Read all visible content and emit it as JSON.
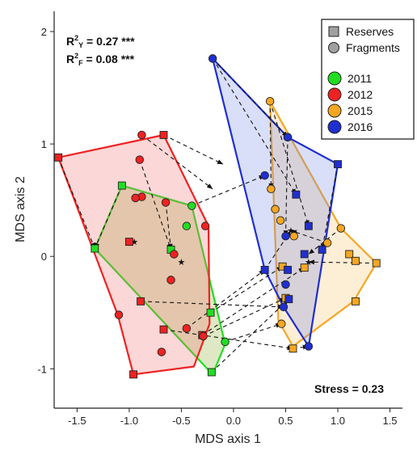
{
  "chart_data": {
    "type": "scatter",
    "xlabel": "MDS axis 1",
    "ylabel": "MDS axis 2",
    "xlim": [
      -1.72,
      1.62
    ],
    "ylim": [
      -1.35,
      2.18
    ],
    "xticks": [
      "-1.5",
      "-1.0",
      "-0.5",
      "0.0",
      "0.5",
      "1.0",
      "1.5"
    ],
    "xtick_values": [
      -1.5,
      -1.0,
      -0.5,
      0.0,
      0.5,
      1.0,
      1.5
    ],
    "yticks": [
      "-1",
      "0",
      "1",
      "2"
    ],
    "ytick_values": [
      -1,
      0,
      1,
      2
    ],
    "grid": false,
    "legend_position": "top-right",
    "stats": {
      "r2y_value": " = 0.27 ***",
      "r2f_value": " = 0.08 ***",
      "stress": "Stress = 0.23"
    },
    "legend": {
      "shape_entries": [
        {
          "label": "Reserves",
          "marker": "square"
        },
        {
          "label": "Fragments",
          "marker": "circle"
        }
      ],
      "year_entries": [
        {
          "label": "2011",
          "color": "#22dd22"
        },
        {
          "label": "2012",
          "color": "#ee2222"
        },
        {
          "label": "2015",
          "color": "#f5a623"
        },
        {
          "label": "2016",
          "color": "#1f2fd0"
        }
      ]
    },
    "series": [
      {
        "name": "2011",
        "color": "#22dd22",
        "fill": "rgba(150,180,60,0.30)",
        "hull": [
          [
            -1.07,
            0.63
          ],
          [
            -0.4,
            0.45
          ],
          [
            -0.08,
            -0.78
          ],
          [
            -0.2,
            -1.05
          ],
          [
            -1.33,
            0.07
          ]
        ],
        "reserves": [
          [
            -1.07,
            0.63
          ],
          [
            -1.33,
            0.07
          ],
          [
            -0.6,
            0.06
          ],
          [
            -0.22,
            -0.5
          ],
          [
            -0.21,
            -1.03
          ]
        ],
        "fragments": [
          [
            -0.4,
            0.45
          ],
          [
            -0.45,
            0.27
          ],
          [
            -0.08,
            -0.76
          ]
        ],
        "centroid": [
          -0.5,
          -0.05
        ]
      },
      {
        "name": "2012",
        "color": "#ee2222",
        "fill": "rgba(240,110,110,0.28)",
        "hull": [
          [
            -1.68,
            0.88
          ],
          [
            -0.67,
            1.08
          ],
          [
            -0.24,
            0.27
          ],
          [
            -0.23,
            -0.6
          ],
          [
            -0.38,
            -0.98
          ],
          [
            -0.96,
            -1.05
          ],
          [
            -1.11,
            -0.52
          ]
        ],
        "reserves": [
          [
            -1.68,
            0.88
          ],
          [
            -0.67,
            1.08
          ],
          [
            -1.0,
            0.13
          ],
          [
            -0.89,
            -0.4
          ],
          [
            -0.67,
            -0.65
          ],
          [
            -0.3,
            -0.7
          ],
          [
            -0.96,
            -1.05
          ]
        ],
        "fragments": [
          [
            -0.88,
            1.08
          ],
          [
            -0.9,
            0.86
          ],
          [
            -0.88,
            0.53
          ],
          [
            -0.94,
            0.52
          ],
          [
            -0.65,
            0.48
          ],
          [
            -0.27,
            0.27
          ],
          [
            -0.57,
            0.02
          ],
          [
            -0.6,
            -0.21
          ],
          [
            -1.1,
            -0.52
          ],
          [
            -0.45,
            -0.64
          ],
          [
            -0.29,
            -0.71
          ],
          [
            -0.69,
            -0.85
          ]
        ],
        "centroid": [
          -0.95,
          0.13
        ]
      },
      {
        "name": "2015",
        "color": "#f5a623",
        "fill": "rgba(250,200,120,0.30)",
        "hull": [
          [
            0.35,
            1.38
          ],
          [
            1.03,
            0.25
          ],
          [
            1.37,
            -0.06
          ],
          [
            1.15,
            -0.4
          ],
          [
            0.57,
            -0.8
          ],
          [
            0.43,
            -0.57
          ]
        ],
        "reserves": [
          [
            1.11,
            0.02
          ],
          [
            1.17,
            -0.04
          ],
          [
            1.37,
            -0.06
          ],
          [
            1.17,
            -0.4
          ],
          [
            0.68,
            -0.1
          ],
          [
            0.5,
            -0.37
          ],
          [
            0.47,
            -0.09
          ],
          [
            0.57,
            -0.82
          ]
        ],
        "fragments": [
          [
            0.35,
            1.38
          ],
          [
            0.52,
            1.06
          ],
          [
            0.36,
            0.6
          ],
          [
            0.4,
            0.42
          ],
          [
            0.45,
            0.32
          ],
          [
            1.03,
            0.25
          ],
          [
            0.9,
            0.12
          ],
          [
            0.58,
            0.18
          ],
          [
            0.46,
            -0.6
          ]
        ],
        "centroid": [
          0.72,
          -0.05
        ]
      },
      {
        "name": "2016",
        "color": "#1f2fd0",
        "fill": "rgba(120,140,230,0.28)",
        "hull": [
          [
            -0.2,
            1.76
          ],
          [
            0.52,
            1.06
          ],
          [
            1.0,
            0.82
          ],
          [
            0.85,
            -0.05
          ],
          [
            0.72,
            -0.8
          ],
          [
            0.48,
            -0.45
          ],
          [
            0.3,
            -0.12
          ]
        ],
        "reserves": [
          [
            1.0,
            0.82
          ],
          [
            0.6,
            0.55
          ],
          [
            0.72,
            0.27
          ],
          [
            0.85,
            0.06
          ],
          [
            0.3,
            -0.12
          ],
          [
            0.52,
            -0.12
          ],
          [
            0.68,
            0.02
          ],
          [
            0.53,
            -0.38
          ]
        ],
        "fragments": [
          [
            -0.2,
            1.76
          ],
          [
            0.52,
            1.06
          ],
          [
            0.3,
            0.72
          ],
          [
            0.5,
            0.18
          ],
          [
            0.5,
            -0.25
          ],
          [
            0.48,
            -0.45
          ],
          [
            0.72,
            -0.8
          ]
        ],
        "centroid": [
          0.55,
          0.23
        ]
      }
    ],
    "links": [
      [
        [
          -1.68,
          0.88
        ],
        [
          -1.33,
          0.07
        ]
      ],
      [
        [
          -1.07,
          0.63
        ],
        [
          -1.33,
          0.07
        ]
      ],
      [
        [
          -0.67,
          1.08
        ],
        [
          -0.1,
          0.82
        ]
      ],
      [
        [
          -0.88,
          1.08
        ],
        [
          -0.2,
          0.6
        ]
      ],
      [
        [
          -0.9,
          0.86
        ],
        [
          -0.6,
          0.06
        ]
      ],
      [
        [
          -0.65,
          0.48
        ],
        [
          -0.6,
          0.06
        ]
      ],
      [
        [
          -1.0,
          0.13
        ],
        [
          -0.95,
          0.13
        ]
      ],
      [
        [
          -0.22,
          -0.5
        ],
        [
          0.47,
          -0.09
        ]
      ],
      [
        [
          -0.29,
          -0.71
        ],
        [
          0.5,
          -0.37
        ]
      ],
      [
        [
          -0.3,
          -0.7
        ],
        [
          0.68,
          -0.1
        ]
      ],
      [
        [
          -0.21,
          -1.03
        ],
        [
          0.53,
          -0.38
        ]
      ],
      [
        [
          -0.08,
          -0.76
        ],
        [
          0.46,
          -0.6
        ]
      ],
      [
        [
          -0.45,
          -0.64
        ],
        [
          0.3,
          -0.12
        ]
      ],
      [
        [
          -0.89,
          -0.4
        ],
        [
          0.48,
          -0.45
        ]
      ],
      [
        [
          -0.67,
          -0.65
        ],
        [
          0.57,
          -0.82
        ]
      ],
      [
        [
          -0.4,
          0.45
        ],
        [
          0.3,
          0.72
        ]
      ],
      [
        [
          -0.2,
          1.76
        ],
        [
          0.52,
          1.06
        ]
      ],
      [
        [
          -0.2,
          1.76
        ],
        [
          0.6,
          0.55
        ]
      ],
      [
        [
          0.35,
          1.38
        ],
        [
          0.36,
          0.6
        ]
      ],
      [
        [
          0.35,
          1.38
        ],
        [
          0.72,
          0.27
        ]
      ],
      [
        [
          1.0,
          0.82
        ],
        [
          0.85,
          0.06
        ]
      ],
      [
        [
          1.03,
          0.25
        ],
        [
          0.72,
          0.02
        ]
      ],
      [
        [
          1.37,
          -0.06
        ],
        [
          0.72,
          -0.05
        ]
      ],
      [
        [
          0.57,
          -0.82
        ],
        [
          0.72,
          -0.8
        ]
      ],
      [
        [
          0.52,
          1.06
        ],
        [
          0.5,
          0.18
        ]
      ],
      [
        [
          0.3,
          -0.12
        ],
        [
          0.55,
          0.23
        ]
      ],
      [
        [
          0.9,
          0.12
        ],
        [
          0.55,
          0.23
        ]
      ]
    ]
  }
}
